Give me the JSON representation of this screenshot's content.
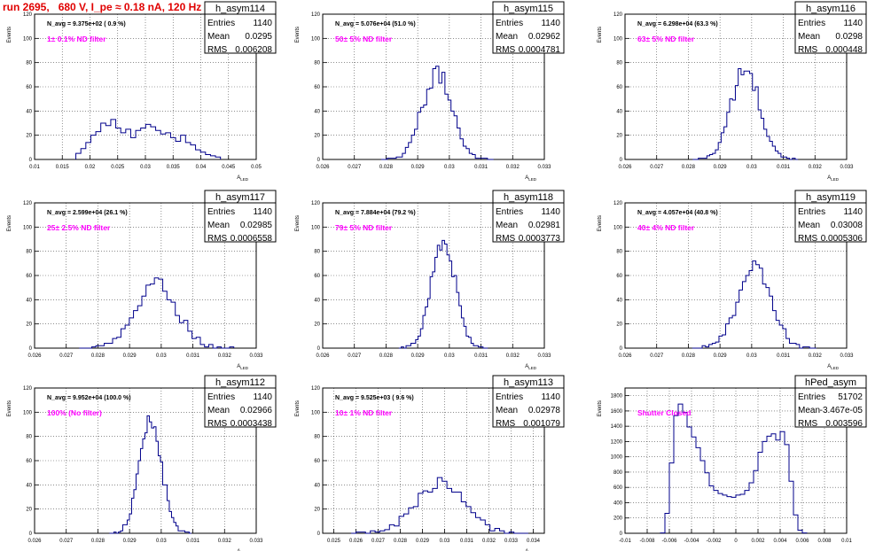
{
  "run_title": "run 2695,   680 V, I_pe ≈ 0.18 nA, 120 Hz",
  "colors": {
    "hist_line": "#00008b",
    "grid": "#000000",
    "annotation": "#ff00ff",
    "run_title": "#e00000"
  },
  "chart_data": [
    {
      "type": "histogram",
      "name": "h_asym114",
      "stats": {
        "entries": "1140",
        "mean": "0.0295",
        "rms": "0.006208"
      },
      "navg_label": "N_avg = 9.375e+02 ( 0.9 %)",
      "filter_label": "1± 0.1% ND filter",
      "ylabel": "Events",
      "xlabel": "A_{LED}",
      "xlim": [
        0.01,
        0.05
      ],
      "ylim": [
        0,
        120
      ],
      "xticks": [
        0.01,
        0.015,
        0.02,
        0.025,
        0.03,
        0.035,
        0.04,
        0.045,
        0.05
      ],
      "xtick_labels": [
        "0.01",
        "0.015",
        "0.02",
        "0.025",
        "0.03",
        "0.035",
        "0.04",
        "0.045",
        "0.05"
      ],
      "yticks": [
        0,
        20,
        40,
        60,
        80,
        100,
        120
      ],
      "shape": [
        {
          "center": 0.0295,
          "sigma": 0.0072,
          "amp": 28
        }
      ],
      "x": [
        0.0179,
        0.0188,
        0.0197,
        0.0206,
        0.0215,
        0.0224,
        0.0233,
        0.0242,
        0.0251,
        0.026,
        0.0269,
        0.0278,
        0.0287,
        0.0296,
        0.0305,
        0.0314,
        0.0323,
        0.0332,
        0.0341,
        0.035,
        0.0359,
        0.0368,
        0.0377,
        0.0386,
        0.0395,
        0.0404,
        0.0413,
        0.0422,
        0.0431
      ],
      "values": [
        5,
        9,
        14,
        20,
        23,
        30,
        28,
        33,
        26,
        22,
        25,
        18,
        24,
        26,
        29,
        27,
        24,
        21,
        22,
        18,
        15,
        20,
        14,
        12,
        8,
        6,
        4,
        3,
        2
      ]
    },
    {
      "type": "histogram",
      "name": "h_asym115",
      "stats": {
        "entries": "1140",
        "mean": "0.02962",
        "rms": "0.0004781"
      },
      "navg_label": "N_avg = 5.076e+04 (51.0 %)",
      "filter_label": "50± 5% ND filter",
      "ylabel": "Events",
      "xlabel": "A_{LED}",
      "xlim": [
        0.026,
        0.033
      ],
      "ylim": [
        0,
        120
      ],
      "xticks": [
        0.026,
        0.027,
        0.028,
        0.029,
        0.03,
        0.031,
        0.032,
        0.033
      ],
      "xtick_labels": [
        "0.026",
        "0.027",
        "0.028",
        "0.029",
        "0.03",
        "0.031",
        "0.032",
        "0.033"
      ],
      "yticks": [
        0,
        20,
        40,
        60,
        80,
        100,
        120
      ],
      "shape": [
        {
          "center": 0.02962,
          "sigma": 0.00048,
          "amp": 70
        }
      ]
    },
    {
      "type": "histogram",
      "name": "h_asym116",
      "stats": {
        "entries": "1140",
        "mean": "0.0298",
        "rms": "0.000448"
      },
      "navg_label": "N_avg = 6.298e+04 (63.3 %)",
      "filter_label": "63± 5% ND filter",
      "ylabel": "Events",
      "xlabel": "A_{LED}",
      "xlim": [
        0.026,
        0.033
      ],
      "ylim": [
        0,
        120
      ],
      "xticks": [
        0.026,
        0.027,
        0.028,
        0.029,
        0.03,
        0.031,
        0.032,
        0.033
      ],
      "xtick_labels": [
        "0.026",
        "0.027",
        "0.028",
        "0.029",
        "0.03",
        "0.031",
        "0.032",
        "0.033"
      ],
      "yticks": [
        0,
        20,
        40,
        60,
        80,
        100,
        120
      ],
      "shape": [
        {
          "center": 0.0298,
          "sigma": 0.00045,
          "amp": 74
        }
      ]
    },
    {
      "type": "histogram",
      "name": "h_asym117",
      "stats": {
        "entries": "1140",
        "mean": "0.02985",
        "rms": "0.0006558"
      },
      "navg_label": "N_avg = 2.599e+04 (26.1 %)",
      "filter_label": "25± 2.5% ND filter",
      "ylabel": "Events",
      "xlabel": "A_{LED}",
      "xlim": [
        0.026,
        0.033
      ],
      "ylim": [
        0,
        120
      ],
      "xticks": [
        0.026,
        0.027,
        0.028,
        0.029,
        0.03,
        0.031,
        0.032,
        0.033
      ],
      "xtick_labels": [
        "0.026",
        "0.027",
        "0.028",
        "0.029",
        "0.03",
        "0.031",
        "0.032",
        "0.033"
      ],
      "yticks": [
        0,
        20,
        40,
        60,
        80,
        100,
        120
      ],
      "shape": [
        {
          "center": 0.02985,
          "sigma": 0.00066,
          "amp": 52
        }
      ]
    },
    {
      "type": "histogram",
      "name": "h_asym118",
      "stats": {
        "entries": "1140",
        "mean": "0.02981",
        "rms": "0.0003773"
      },
      "navg_label": "N_avg = 7.884e+04 (79.2 %)",
      "filter_label": "79± 5% ND filter",
      "ylabel": "Events",
      "xlabel": "A_{LED}",
      "xlim": [
        0.026,
        0.033
      ],
      "ylim": [
        0,
        120
      ],
      "xticks": [
        0.026,
        0.027,
        0.028,
        0.029,
        0.03,
        0.031,
        0.032,
        0.033
      ],
      "xtick_labels": [
        "0.026",
        "0.027",
        "0.028",
        "0.029",
        "0.03",
        "0.031",
        "0.032",
        "0.033"
      ],
      "yticks": [
        0,
        20,
        40,
        60,
        80,
        100,
        120
      ],
      "shape": [
        {
          "center": 0.02981,
          "sigma": 0.00038,
          "amp": 90
        }
      ]
    },
    {
      "type": "histogram",
      "name": "h_asym119",
      "stats": {
        "entries": "1140",
        "mean": "0.03008",
        "rms": "0.0005306"
      },
      "navg_label": "N_avg = 4.057e+04 (40.8 %)",
      "filter_label": "40± 4% ND filter",
      "ylabel": "Events",
      "xlabel": "A_{LED}",
      "xlim": [
        0.026,
        0.033
      ],
      "ylim": [
        0,
        120
      ],
      "xticks": [
        0.026,
        0.027,
        0.028,
        0.029,
        0.03,
        0.031,
        0.032,
        0.033
      ],
      "xtick_labels": [
        "0.026",
        "0.027",
        "0.028",
        "0.029",
        "0.03",
        "0.031",
        "0.032",
        "0.033"
      ],
      "yticks": [
        0,
        20,
        40,
        60,
        80,
        100,
        120
      ],
      "shape": [
        {
          "center": 0.03008,
          "sigma": 0.00053,
          "amp": 66
        }
      ]
    },
    {
      "type": "histogram",
      "name": "h_asym112",
      "stats": {
        "entries": "1140",
        "mean": "0.02966",
        "rms": "0.0003438"
      },
      "navg_label": "N_avg = 9.952e+04 (100.0 %)",
      "filter_label": "100% (No filter)",
      "ylabel": "Events",
      "xlabel": "A_{LED}",
      "xlim": [
        0.026,
        0.033
      ],
      "ylim": [
        0,
        120
      ],
      "xticks": [
        0.026,
        0.027,
        0.028,
        0.029,
        0.03,
        0.031,
        0.032,
        0.033
      ],
      "xtick_labels": [
        "0.026",
        "0.027",
        "0.028",
        "0.029",
        "0.03",
        "0.031",
        "0.032",
        "0.033"
      ],
      "yticks": [
        0,
        20,
        40,
        60,
        80,
        100,
        120
      ],
      "shape": [
        {
          "center": 0.02966,
          "sigma": 0.00035,
          "amp": 94
        }
      ]
    },
    {
      "type": "histogram",
      "name": "h_asym113",
      "stats": {
        "entries": "1140",
        "mean": "0.02978",
        "rms": "0.001079"
      },
      "navg_label": "N_avg = 9.525e+03 ( 9.6 %)",
      "filter_label": "10± 1% ND filter",
      "ylabel": "Events",
      "xlabel": "A_{LED}",
      "xlim": [
        0.0245,
        0.0345
      ],
      "ylim": [
        0,
        120
      ],
      "xticks": [
        0.025,
        0.026,
        0.027,
        0.028,
        0.029,
        0.03,
        0.031,
        0.032,
        0.033,
        0.034
      ],
      "xtick_labels": [
        "0.025",
        "0.026",
        "0.027",
        "0.028",
        "0.029",
        "0.03",
        "0.031",
        "0.032",
        "0.033",
        "0.034"
      ],
      "yticks": [
        0,
        20,
        40,
        60,
        80,
        100,
        120
      ],
      "shape": [
        {
          "center": 0.02978,
          "sigma": 0.00108,
          "amp": 42
        }
      ]
    },
    {
      "type": "histogram",
      "name": "hPed_asym",
      "stats": {
        "entries": "51702",
        "mean": "-3.467e-05",
        "rms": "0.003596"
      },
      "navg_label": "",
      "filter_label": "Shutter Closed",
      "ylabel": "Events",
      "xlabel": "",
      "xlim": [
        -0.01,
        0.01
      ],
      "ylim": [
        0,
        1900
      ],
      "xticks": [
        -0.01,
        -0.008,
        -0.006,
        -0.004,
        -0.002,
        0,
        0.002,
        0.004,
        0.006,
        0.008,
        0.01
      ],
      "xtick_labels": [
        "-0.01",
        "-0.008",
        "-0.006",
        "-0.004",
        "-0.002",
        "0",
        "0.002",
        "0.004",
        "0.006",
        "0.008",
        "0.01"
      ],
      "yticks": [
        0,
        200,
        400,
        600,
        800,
        1000,
        1200,
        1400,
        1600,
        1800
      ],
      "shape": [
        {
          "center": -0.0049,
          "sigma": 0.0006,
          "amp": 1150
        },
        {
          "center": -0.0044,
          "sigma": 0.0014,
          "amp": 500
        },
        {
          "center": 0,
          "sigma": 0.0045,
          "amp": 470
        },
        {
          "center": 0.0038,
          "sigma": 0.0013,
          "amp": 900
        }
      ],
      "x": [
        -0.0066,
        -0.0062,
        -0.0058,
        -0.0054,
        -0.005,
        -0.0046,
        -0.0042,
        -0.0038,
        -0.0034,
        -0.003,
        -0.0026,
        -0.0022,
        -0.0018,
        -0.0014,
        -0.001,
        -0.0006,
        -0.0002,
        0.0002,
        0.0006,
        0.001,
        0.0014,
        0.0018,
        0.0022,
        0.0026,
        0.003,
        0.0034,
        0.0038,
        0.0042,
        0.0046,
        0.005,
        0.0054,
        0.0058,
        0.0062
      ],
      "values": [
        5,
        260,
        920,
        1540,
        1690,
        1580,
        1390,
        1260,
        1120,
        950,
        790,
        620,
        560,
        520,
        500,
        480,
        470,
        500,
        510,
        560,
        660,
        820,
        1060,
        1200,
        1270,
        1300,
        1220,
        1330,
        1160,
        680,
        240,
        40,
        5
      ]
    }
  ]
}
